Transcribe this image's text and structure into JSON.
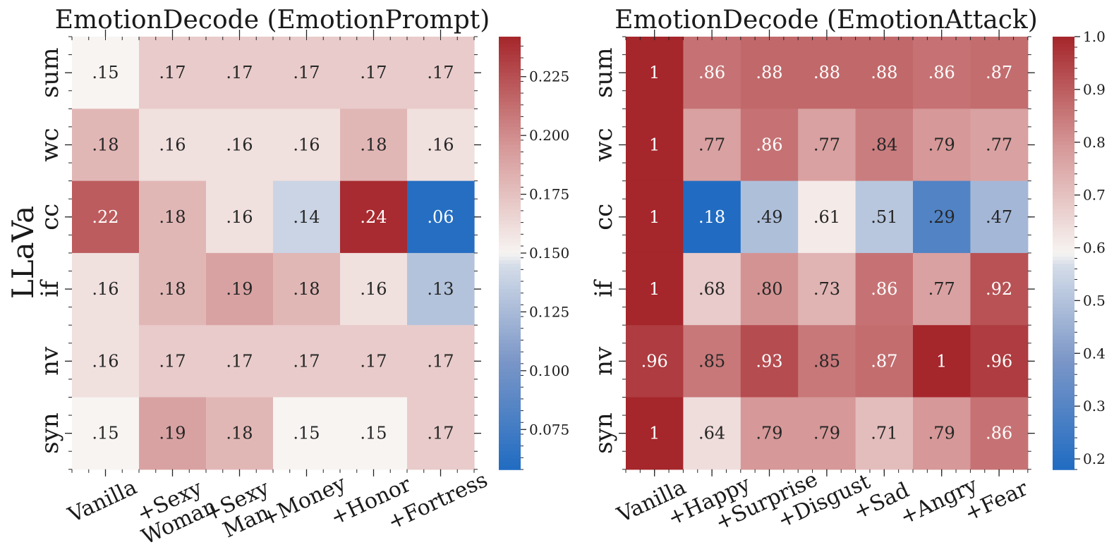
{
  "figure": {
    "row_group_label": "LLaVa"
  },
  "chart_data": [
    {
      "type": "heatmap",
      "title": "EmotionDecode (EmotionPrompt)",
      "rows": [
        "sum",
        "wc",
        "cc",
        "if",
        "nv",
        "syn"
      ],
      "columns": [
        "Vanilla",
        "+Sexy\nWoman",
        "+Sexy\nMan",
        "+Money",
        "+Honor",
        "+Fortress"
      ],
      "values": [
        [
          0.15,
          0.17,
          0.17,
          0.17,
          0.17,
          0.17
        ],
        [
          0.18,
          0.16,
          0.16,
          0.16,
          0.18,
          0.16
        ],
        [
          0.22,
          0.18,
          0.16,
          0.14,
          0.24,
          0.06
        ],
        [
          0.16,
          0.18,
          0.19,
          0.18,
          0.16,
          0.13
        ],
        [
          0.16,
          0.17,
          0.17,
          0.17,
          0.17,
          0.17
        ],
        [
          0.15,
          0.19,
          0.18,
          0.15,
          0.15,
          0.17
        ]
      ],
      "cell_labels": [
        [
          ".15",
          ".17",
          ".17",
          ".17",
          ".17",
          ".17"
        ],
        [
          ".18",
          ".16",
          ".16",
          ".16",
          ".18",
          ".16"
        ],
        [
          ".22",
          ".18",
          ".16",
          ".14",
          ".24",
          ".06"
        ],
        [
          ".16",
          ".18",
          ".19",
          ".18",
          ".16",
          ".13"
        ],
        [
          ".16",
          ".17",
          ".17",
          ".17",
          ".17",
          ".17"
        ],
        [
          ".15",
          ".19",
          ".18",
          ".15",
          ".15",
          ".17"
        ]
      ],
      "colorbar": {
        "colormap": "vlag",
        "range": [
          0.058,
          0.242
        ],
        "center": 0.15,
        "ticks": [
          0.075,
          0.1,
          0.125,
          0.15,
          0.175,
          0.2,
          0.225
        ],
        "tick_labels": [
          "0.075",
          "0.100",
          "0.125",
          "0.150",
          "0.175",
          "0.200",
          "0.225"
        ]
      }
    },
    {
      "type": "heatmap",
      "title": "EmotionDecode (EmotionAttack)",
      "rows": [
        "sum",
        "wc",
        "cc",
        "if",
        "nv",
        "syn"
      ],
      "columns": [
        "Vanilla",
        "+Happy",
        "+Surprise",
        "+Disgust",
        "+Sad",
        "+Angry",
        "+Fear"
      ],
      "values": [
        [
          1.0,
          0.86,
          0.88,
          0.88,
          0.88,
          0.86,
          0.87
        ],
        [
          1.0,
          0.77,
          0.86,
          0.77,
          0.84,
          0.79,
          0.77
        ],
        [
          1.0,
          0.18,
          0.49,
          0.61,
          0.51,
          0.29,
          0.47
        ],
        [
          1.0,
          0.68,
          0.8,
          0.73,
          0.86,
          0.77,
          0.92
        ],
        [
          0.96,
          0.85,
          0.93,
          0.85,
          0.87,
          1.0,
          0.96
        ],
        [
          1.0,
          0.64,
          0.79,
          0.79,
          0.71,
          0.79,
          0.86
        ]
      ],
      "cell_labels": [
        [
          "1",
          ".86",
          ".88",
          ".88",
          ".88",
          ".86",
          ".87"
        ],
        [
          "1",
          ".77",
          ".86",
          ".77",
          ".84",
          ".79",
          ".77"
        ],
        [
          "1",
          ".18",
          ".49",
          ".61",
          ".51",
          ".29",
          ".47"
        ],
        [
          "1",
          ".68",
          ".80",
          ".73",
          ".86",
          ".77",
          ".92"
        ],
        [
          ".96",
          ".85",
          ".93",
          ".85",
          ".87",
          "1",
          ".96"
        ],
        [
          "1",
          ".64",
          ".79",
          ".79",
          ".71",
          ".79",
          ".86"
        ]
      ],
      "colorbar": {
        "colormap": "vlag",
        "range": [
          0.18,
          1.0
        ],
        "center": 0.59,
        "ticks": [
          0.2,
          0.3,
          0.4,
          0.5,
          0.6,
          0.7,
          0.8,
          0.9,
          1.0
        ],
        "tick_labels": [
          "0.2",
          "0.3",
          "0.4",
          "0.5",
          "0.6",
          "0.7",
          "0.8",
          "0.9",
          "1.0"
        ]
      }
    }
  ]
}
